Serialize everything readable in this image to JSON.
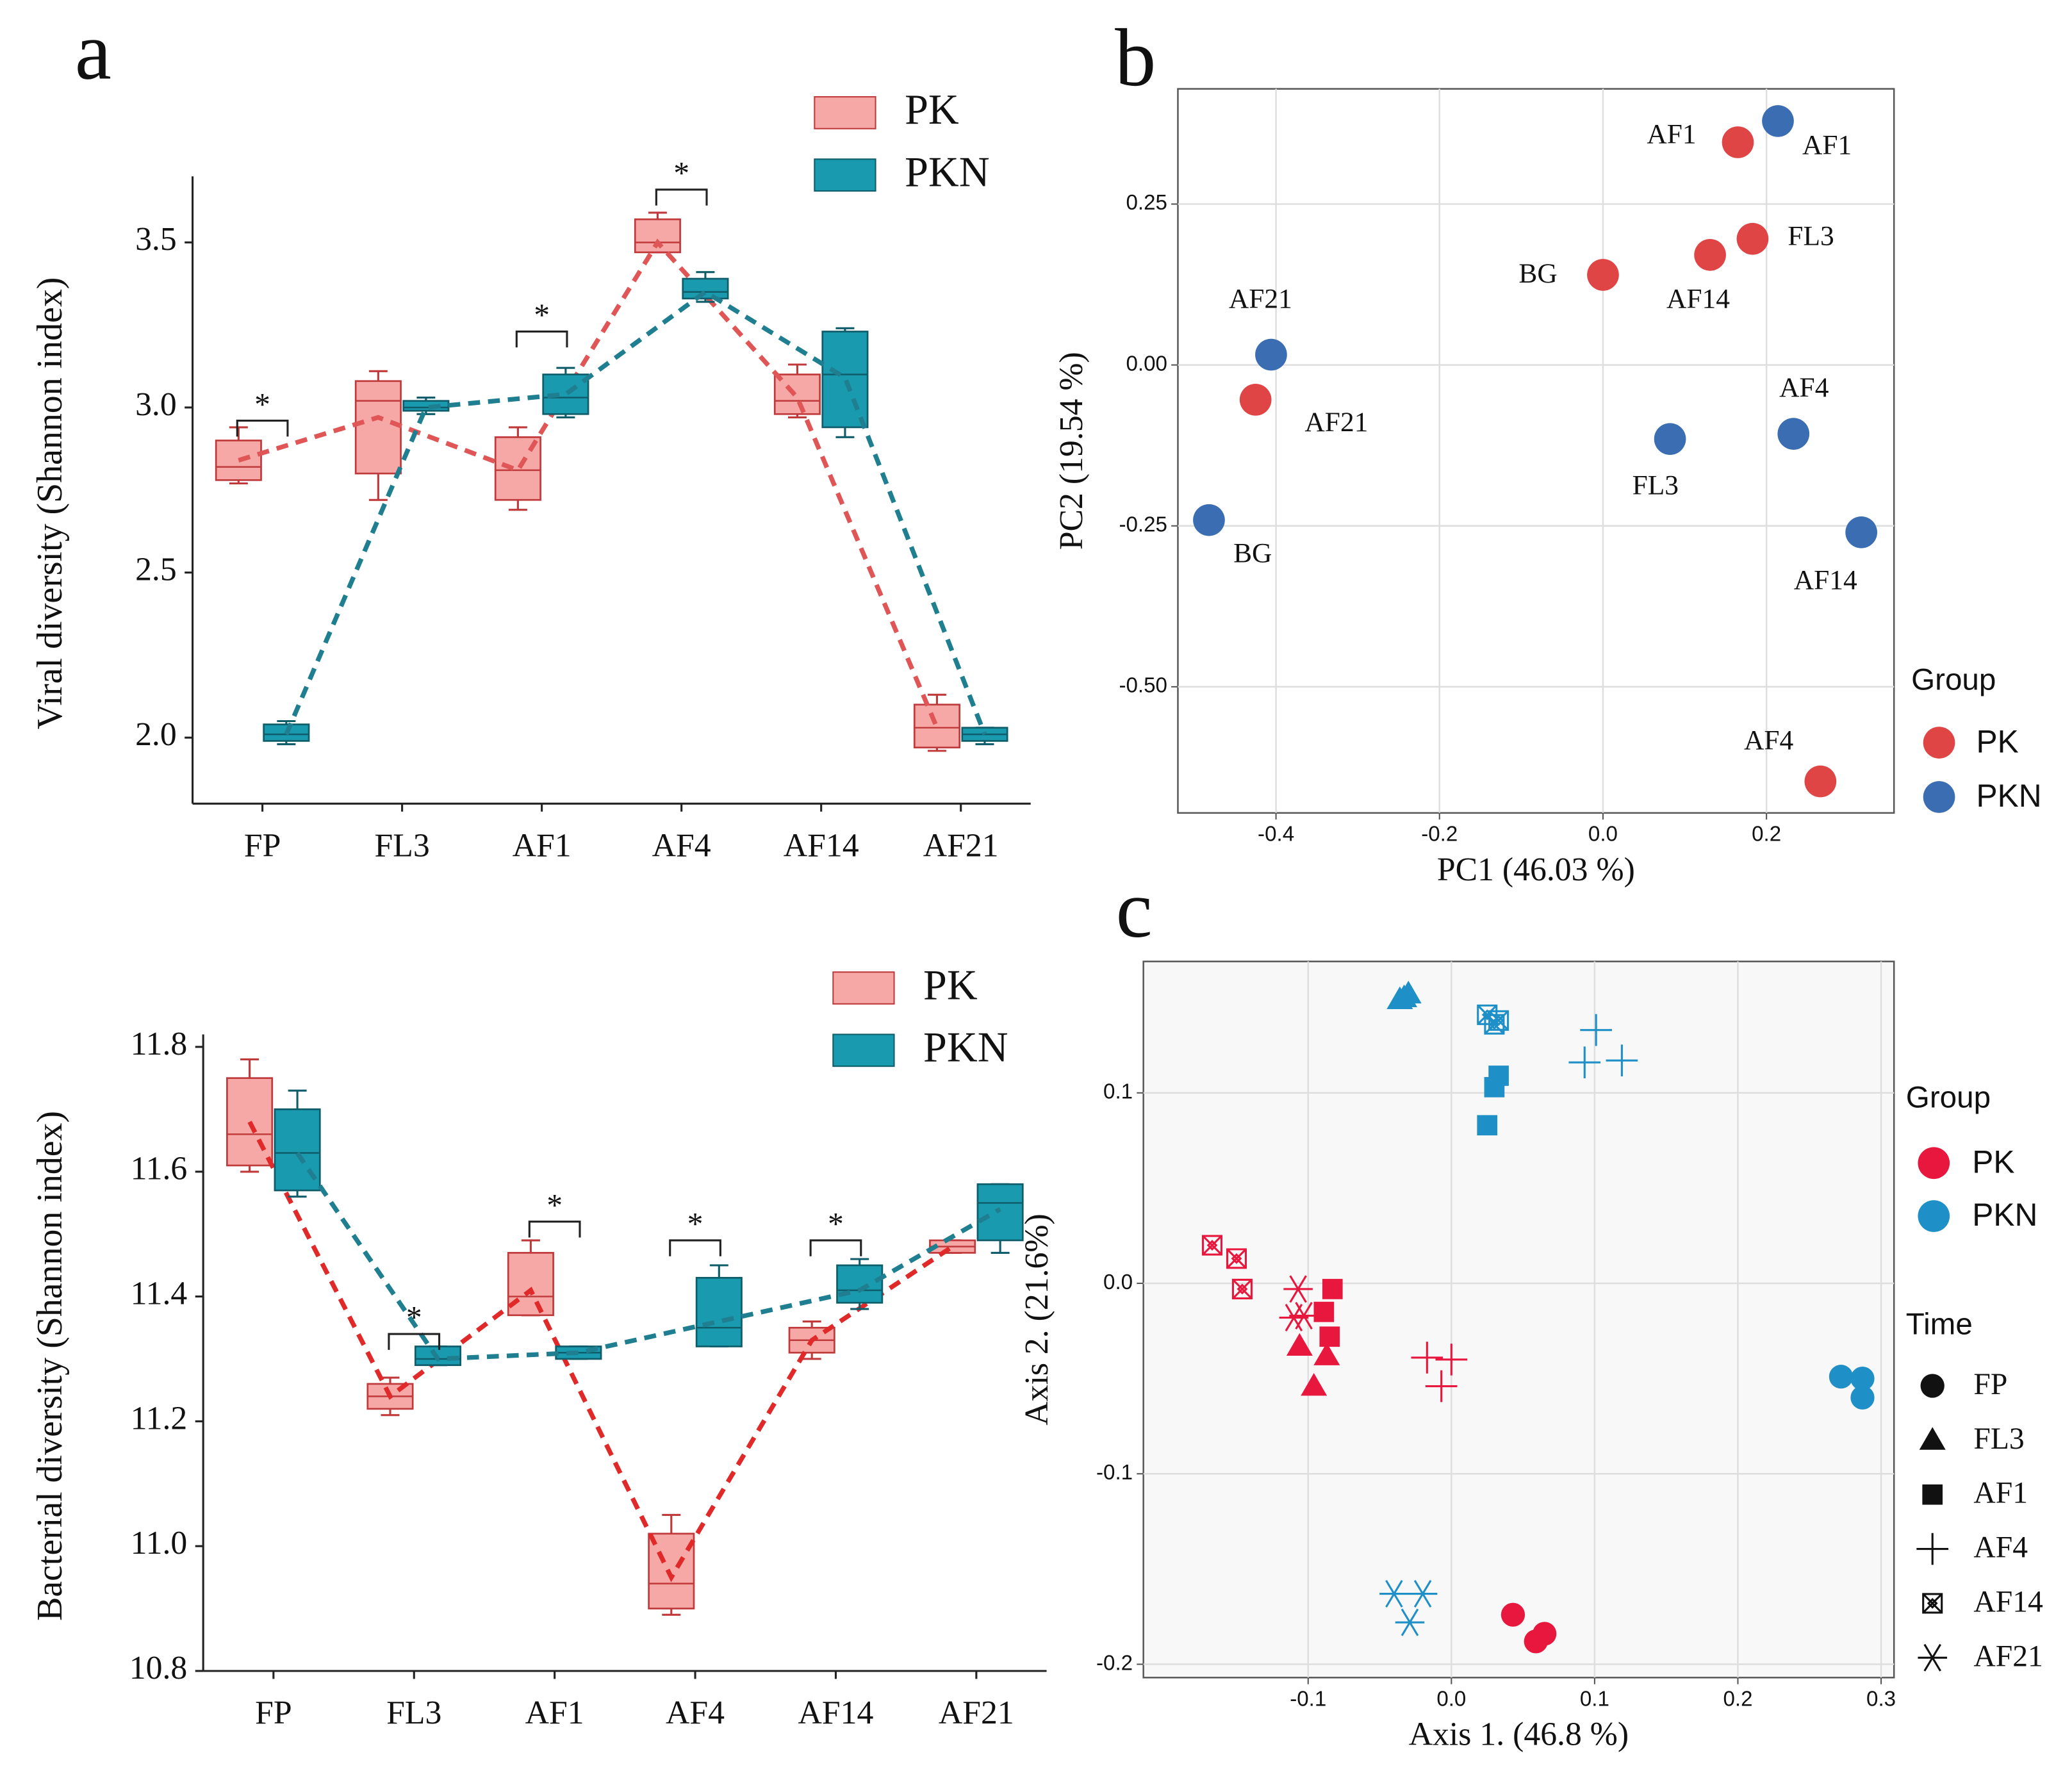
{
  "chart_data": [
    {
      "type": "box",
      "panel": "a",
      "ylabel": "Viral diversity (Shannon index)",
      "categories": [
        "FP",
        "FL3",
        "AF1",
        "AF4",
        "AF14",
        "AF21"
      ],
      "ylim": [
        1.8,
        3.7
      ],
      "yticks": [
        {
          "value": 2,
          "label": "2.0"
        },
        2.5,
        {
          "value": 3,
          "label": "3.0"
        },
        3.5
      ],
      "series": [
        {
          "name": "PK",
          "color": "#f5a8a6",
          "line_color": "#e05555",
          "values": [
            {
              "min": 2.77,
              "q1": 2.78,
              "median": 2.82,
              "q3": 2.9,
              "max": 2.94,
              "mean": 2.84
            },
            {
              "min": 2.72,
              "q1": 2.8,
              "median": 3.02,
              "q3": 3.08,
              "max": 3.11,
              "mean": 2.97
            },
            {
              "min": 2.69,
              "q1": 2.72,
              "median": 2.81,
              "q3": 2.91,
              "max": 2.94,
              "mean": 2.81
            },
            {
              "min": 3.47,
              "q1": 3.47,
              "median": 3.5,
              "q3": 3.57,
              "max": 3.59,
              "mean": 3.5
            },
            {
              "min": 2.97,
              "q1": 2.98,
              "median": 3.02,
              "q3": 3.1,
              "max": 3.13,
              "mean": 3.03
            },
            {
              "min": 1.96,
              "q1": 1.97,
              "median": 2.03,
              "q3": 2.1,
              "max": 2.13,
              "mean": 2.03
            }
          ]
        },
        {
          "name": "PKN",
          "color": "#1a9aae",
          "line_color": "#1f7f90",
          "values": [
            {
              "min": 1.98,
              "q1": 1.99,
              "median": 2.01,
              "q3": 2.04,
              "max": 2.05,
              "mean": 2.01
            },
            {
              "min": 2.98,
              "q1": 2.99,
              "median": 3.0,
              "q3": 3.02,
              "max": 3.03,
              "mean": 3.0
            },
            {
              "min": 2.97,
              "q1": 2.98,
              "median": 3.03,
              "q3": 3.1,
              "max": 3.12,
              "mean": 3.04
            },
            {
              "min": 3.32,
              "q1": 3.33,
              "median": 3.35,
              "q3": 3.39,
              "max": 3.41,
              "mean": 3.35
            },
            {
              "min": 2.91,
              "q1": 2.94,
              "median": 3.1,
              "q3": 3.23,
              "max": 3.24,
              "mean": 3.09
            },
            {
              "min": 1.98,
              "q1": 1.99,
              "median": 2.01,
              "q3": 2.03,
              "max": 2.03,
              "mean": 2.01
            }
          ]
        }
      ],
      "annotations": [
        {
          "x": "FP",
          "text": "*",
          "y": 2.96
        },
        {
          "x": "AF1",
          "text": "*",
          "y": 3.23
        },
        {
          "x": "AF4",
          "text": "*",
          "y": 3.66
        }
      ]
    },
    {
      "type": "box",
      "ylabel": "Bacterial diversity (Shannon index)",
      "categories": [
        "FP",
        "FL3",
        "AF1",
        "AF4",
        "AF14",
        "AF21"
      ],
      "ylim": [
        10.8,
        11.82
      ],
      "yticks": [
        10.8,
        {
          "value": 11,
          "label": "11.0"
        },
        11.2,
        11.4,
        11.6,
        11.8
      ],
      "series": [
        {
          "name": "PK",
          "color": "#f5a8a6",
          "line_color": "#e02a2a",
          "values": [
            {
              "min": 11.6,
              "q1": 11.61,
              "median": 11.66,
              "q3": 11.75,
              "max": 11.78,
              "mean": 11.68
            },
            {
              "min": 11.21,
              "q1": 11.22,
              "median": 11.24,
              "q3": 11.26,
              "max": 11.27,
              "mean": 11.24
            },
            {
              "min": 11.37,
              "q1": 11.37,
              "median": 11.4,
              "q3": 11.47,
              "max": 11.49,
              "mean": 11.41
            },
            {
              "min": 10.89,
              "q1": 10.9,
              "median": 10.94,
              "q3": 11.02,
              "max": 11.05,
              "mean": 10.95
            },
            {
              "min": 11.3,
              "q1": 11.31,
              "median": 11.33,
              "q3": 11.35,
              "max": 11.36,
              "mean": 11.33
            },
            {
              "min": 11.47,
              "q1": 11.47,
              "median": 11.48,
              "q3": 11.49,
              "max": 11.49,
              "mean": 11.48
            }
          ]
        },
        {
          "name": "PKN",
          "color": "#1a9aae",
          "line_color": "#1f7f90",
          "values": [
            {
              "min": 11.56,
              "q1": 11.57,
              "median": 11.63,
              "q3": 11.7,
              "max": 11.73,
              "mean": 11.63
            },
            {
              "min": 11.29,
              "q1": 11.29,
              "median": 11.3,
              "q3": 11.32,
              "max": 11.32,
              "mean": 11.3
            },
            {
              "min": 11.3,
              "q1": 11.3,
              "median": 11.31,
              "q3": 11.32,
              "max": 11.32,
              "mean": 11.31
            },
            {
              "min": 11.32,
              "q1": 11.32,
              "median": 11.35,
              "q3": 11.43,
              "max": 11.45,
              "mean": 11.36
            },
            {
              "min": 11.38,
              "q1": 11.39,
              "median": 11.41,
              "q3": 11.45,
              "max": 11.46,
              "mean": 11.41
            },
            {
              "min": 11.47,
              "q1": 11.49,
              "median": 11.55,
              "q3": 11.58,
              "max": 11.58,
              "mean": 11.54
            }
          ]
        }
      ],
      "annotations": [
        {
          "x": "FL3",
          "text": "*",
          "y": 11.34
        },
        {
          "x": "AF1",
          "text": "*",
          "y": 11.52
        },
        {
          "x": "AF4",
          "text": "*",
          "y": 11.49
        },
        {
          "x": "AF14",
          "text": "*",
          "y": 11.49
        }
      ]
    },
    {
      "type": "scatter",
      "panel": "b",
      "xlabel": "PC1 (46.03 %)",
      "ylabel": "PC2 (19.54 %)",
      "xlim": [
        -0.52,
        0.356
      ],
      "ylim": [
        -0.696,
        0.429
      ],
      "xticks": [
        -0.4,
        -0.2,
        {
          "value": 0,
          "label": "0.0"
        },
        0.2
      ],
      "yticks": [
        {
          "value": -0.5,
          "label": "-0.50"
        },
        -0.25,
        {
          "value": 0,
          "label": "0.00"
        },
        0.25
      ],
      "grid": true,
      "legend_title": "Group",
      "series": [
        {
          "name": "PK",
          "color": "#e04545",
          "label_color": "#9b1c1c",
          "x": [
            0.165,
            0.183,
            0.131,
            0.0,
            -0.425,
            0.266
          ],
          "y": [
            0.346,
            0.196,
            0.171,
            0.14,
            -0.054,
            -0.647
          ],
          "labels": [
            "AF1",
            "FL3",
            "AF14",
            "BG",
            "AF21",
            "AF4"
          ]
        },
        {
          "name": "PKN",
          "color": "#3a6db2",
          "label_color": "#2f6ea8",
          "x": [
            0.214,
            -0.406,
            0.082,
            0.233,
            -0.482,
            0.316
          ],
          "y": [
            0.379,
            0.016,
            -0.115,
            -0.107,
            -0.241,
            -0.26
          ],
          "labels": [
            "AF1",
            "AF21",
            "FL3",
            "AF4",
            "BG",
            "AF14"
          ]
        }
      ]
    },
    {
      "type": "scatter_groups",
      "panel": "c",
      "xlabel": "Axis 1. (46.8 %)",
      "ylabel": "Axis 2. (21.6%)",
      "xlim": [
        -0.215,
        0.309
      ],
      "ylim": [
        -0.207,
        0.169
      ],
      "xticks": [
        -0.1,
        {
          "value": 0,
          "label": "0.0"
        },
        0.1,
        0.2,
        0.3
      ],
      "yticks": [
        -0.2,
        -0.1,
        {
          "value": 0,
          "label": "0.0"
        },
        0.1
      ],
      "grid": true,
      "groups": {
        "title": "Group",
        "items": [
          {
            "name": "PK",
            "color": "#e8173e"
          },
          {
            "name": "PKN",
            "color": "#1f8fc7"
          }
        ]
      },
      "times": {
        "title": "Time",
        "items": [
          {
            "name": "FP",
            "shape": "circle"
          },
          {
            "name": "FL3",
            "shape": "triangle"
          },
          {
            "name": "AF1",
            "shape": "square"
          },
          {
            "name": "AF4",
            "shape": "plus"
          },
          {
            "name": "AF14",
            "shape": "boxx"
          },
          {
            "name": "AF21",
            "shape": "asterisk"
          }
        ]
      },
      "series": [
        {
          "group": "PKN",
          "time": "FP",
          "x": [
            0.272,
            0.287,
            0.287
          ],
          "y": [
            -0.049,
            -0.05,
            -0.06
          ]
        },
        {
          "group": "PKN",
          "time": "FL3",
          "x": [
            -0.036,
            -0.03,
            -0.033
          ],
          "y": [
            0.149,
            0.152,
            0.15
          ]
        },
        {
          "group": "PKN",
          "time": "AF1",
          "x": [
            0.033,
            0.03,
            0.025
          ],
          "y": [
            0.109,
            0.103,
            0.083
          ]
        },
        {
          "group": "PKN",
          "time": "AF4",
          "x": [
            0.101,
            0.093,
            0.119
          ],
          "y": [
            0.133,
            0.116,
            0.117
          ]
        },
        {
          "group": "PKN",
          "time": "AF14",
          "x": [
            0.025,
            0.03,
            0.033
          ],
          "y": [
            0.141,
            0.136,
            0.138
          ]
        },
        {
          "group": "PKN",
          "time": "AF21",
          "x": [
            -0.04,
            -0.02,
            -0.029
          ],
          "y": [
            -0.163,
            -0.163,
            -0.178
          ]
        },
        {
          "group": "PK",
          "time": "FP",
          "x": [
            0.043,
            0.059,
            0.065
          ],
          "y": [
            -0.174,
            -0.188,
            -0.184
          ]
        },
        {
          "group": "PK",
          "time": "FL3",
          "x": [
            -0.106,
            -0.087,
            -0.096
          ],
          "y": [
            -0.033,
            -0.038,
            -0.054
          ]
        },
        {
          "group": "PK",
          "time": "AF1",
          "x": [
            -0.083,
            -0.089,
            -0.085
          ],
          "y": [
            -0.003,
            -0.015,
            -0.028
          ]
        },
        {
          "group": "PK",
          "time": "AF4",
          "x": [
            -0.017,
            0.0,
            -0.007
          ],
          "y": [
            -0.039,
            -0.04,
            -0.054
          ]
        },
        {
          "group": "PK",
          "time": "AF14",
          "x": [
            -0.167,
            -0.15,
            -0.146
          ],
          "y": [
            0.02,
            0.013,
            -0.003
          ]
        },
        {
          "group": "PK",
          "time": "AF21",
          "x": [
            -0.107,
            -0.11,
            -0.103
          ],
          "y": [
            -0.003,
            -0.018,
            -0.017
          ]
        }
      ]
    }
  ]
}
